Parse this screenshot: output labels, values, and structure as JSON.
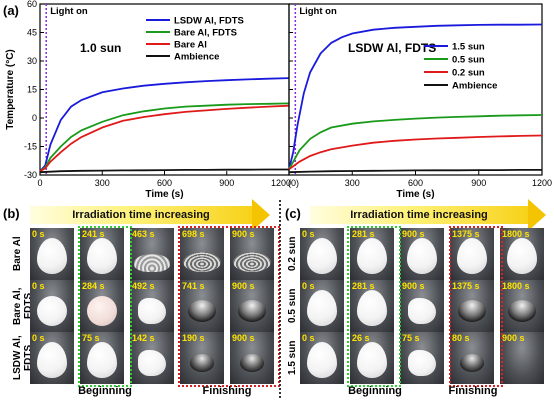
{
  "panel_labels": {
    "a": "(a)",
    "b": "(b)",
    "c": "(c)"
  },
  "chart_data": [
    {
      "type": "line",
      "panel": "left",
      "title": "1.0 sun",
      "annotation": "Light on",
      "xlabel": "Time (s)",
      "ylabel": "Temperature (°C)",
      "xlim": [
        0,
        1200
      ],
      "ylim": [
        -30,
        60
      ],
      "xticks": [
        "0",
        "300",
        "600",
        "900",
        "1200"
      ],
      "yticks": [
        "-30",
        "-15",
        "0",
        "15",
        "30",
        "45",
        "60"
      ],
      "legend_position": "top-right",
      "series": [
        {
          "name": "LSDW Al, FDTS",
          "color": "#1a1adc",
          "x": [
            0,
            25,
            50,
            100,
            150,
            200,
            300,
            400,
            500,
            600,
            700,
            800,
            900,
            1000,
            1100,
            1200
          ],
          "y": [
            -28,
            -25,
            -14,
            -1,
            6,
            9.5,
            13.5,
            15.5,
            17,
            18,
            18.8,
            19.4,
            19.9,
            20.3,
            20.7,
            21
          ]
        },
        {
          "name": "Bare Al, FDTS",
          "color": "#1a9a1a",
          "x": [
            0,
            25,
            50,
            100,
            150,
            200,
            300,
            400,
            500,
            600,
            700,
            800,
            900,
            1000,
            1100,
            1200
          ],
          "y": [
            -28,
            -26,
            -21,
            -15,
            -10,
            -6.5,
            -2,
            1.5,
            3.5,
            5,
            6,
            6.5,
            7,
            7.3,
            7.5,
            7.7
          ]
        },
        {
          "name": "Bare Al",
          "color": "#e01a1a",
          "x": [
            0,
            25,
            50,
            100,
            150,
            200,
            300,
            400,
            500,
            600,
            700,
            800,
            900,
            1000,
            1100,
            1200
          ],
          "y": [
            -28,
            -26.5,
            -23,
            -18,
            -13.5,
            -10,
            -5,
            -1.5,
            0.5,
            2,
            3.2,
            4,
            4.8,
            5.4,
            6,
            6.5
          ]
        },
        {
          "name": "Ambience",
          "color": "#111111",
          "x": [
            0,
            100,
            200,
            300,
            400,
            500,
            600,
            700,
            800,
            900,
            1000,
            1100,
            1200
          ],
          "y": [
            -28.5,
            -28,
            -27.8,
            -27.7,
            -27.6,
            -27.5,
            -27.4,
            -27.3,
            -27.3,
            -27.2,
            -27.2,
            -27.1,
            -27.1
          ]
        }
      ]
    },
    {
      "type": "line",
      "panel": "right",
      "title": "LSDW Al, FDTS",
      "annotation": "Light on",
      "xlabel": "Time (s)",
      "ylabel": "",
      "xlim": [
        0,
        1200
      ],
      "ylim": [
        -30,
        60
      ],
      "xticks": [
        "(0)",
        "300",
        "600",
        "900",
        "1200"
      ],
      "legend_position": "top-right",
      "series": [
        {
          "name": "1.5 sun",
          "color": "#1a1adc",
          "x": [
            0,
            20,
            40,
            70,
            100,
            150,
            200,
            250,
            300,
            400,
            500,
            600,
            700,
            800,
            900,
            1000,
            1100,
            1200
          ],
          "y": [
            -27,
            -18,
            -4,
            13,
            24,
            34,
            39.5,
            42.5,
            44.5,
            46.5,
            47.5,
            48,
            48.5,
            48.8,
            49,
            49.1,
            49.1,
            49.2
          ]
        },
        {
          "name": "0.5 sun",
          "color": "#1a9a1a",
          "x": [
            0,
            25,
            50,
            100,
            150,
            200,
            300,
            400,
            500,
            600,
            700,
            800,
            900,
            1000,
            1100,
            1200
          ],
          "y": [
            -27,
            -22,
            -17,
            -11,
            -7.5,
            -5,
            -3,
            -1.8,
            -1,
            -0.3,
            0.2,
            0.6,
            0.9,
            1.2,
            1.4,
            1.6
          ]
        },
        {
          "name": "0.2 sun",
          "color": "#e01a1a",
          "x": [
            0,
            25,
            50,
            100,
            150,
            200,
            300,
            400,
            500,
            600,
            700,
            800,
            900,
            1000,
            1100,
            1200
          ],
          "y": [
            -27,
            -25,
            -23,
            -20,
            -18,
            -16.5,
            -14.5,
            -13,
            -12,
            -11.3,
            -10.8,
            -10.4,
            -10,
            -9.7,
            -9.4,
            -9.2
          ]
        },
        {
          "name": "Ambience",
          "color": "#111111",
          "x": [
            0,
            100,
            200,
            300,
            400,
            500,
            600,
            700,
            800,
            900,
            1000,
            1100,
            1200
          ],
          "y": [
            -28.5,
            -28.2,
            -28,
            -27.9,
            -27.8,
            -27.7,
            -27.6,
            -27.5,
            -27.5,
            -27.4,
            -27.4,
            -27.3,
            -27.3
          ]
        }
      ]
    }
  ],
  "panel_b": {
    "banner": "Irradiation time increasing",
    "rows": [
      {
        "label": "Bare Al",
        "frames": [
          {
            "time": "0 s",
            "shape": "tear"
          },
          {
            "time": "241 s",
            "shape": "tear"
          },
          {
            "time": "463 s",
            "shape": "flat"
          },
          {
            "time": "698 s",
            "shape": "rim"
          },
          {
            "time": "900 s",
            "shape": "rim"
          }
        ]
      },
      {
        "label": "Bare Al, FDTS",
        "frames": [
          {
            "time": "0 s",
            "shape": "round"
          },
          {
            "time": "284 s",
            "shape": "round-pink"
          },
          {
            "time": "492 s",
            "shape": "irreg"
          },
          {
            "time": "741 s",
            "shape": "ball"
          },
          {
            "time": "900 s",
            "shape": "ball"
          }
        ]
      },
      {
        "label": "LSDW Al, FDTS",
        "frames": [
          {
            "time": "0 s",
            "shape": "tear"
          },
          {
            "time": "75 s",
            "shape": "tear"
          },
          {
            "time": "142 s",
            "shape": "irreg"
          },
          {
            "time": "190 s",
            "shape": "small"
          },
          {
            "time": "900 s",
            "shape": "small"
          }
        ]
      }
    ],
    "beginning_label": "Beginning",
    "finishing_label": "Finishing"
  },
  "panel_c": {
    "banner": "Irradiation time increasing",
    "rows": [
      {
        "label": "0.2 sun",
        "frames": [
          {
            "time": "0 s",
            "shape": "tear"
          },
          {
            "time": "281 s",
            "shape": "tear"
          },
          {
            "time": "900 s",
            "shape": "tear"
          },
          {
            "time": "1375 s",
            "shape": "tear"
          },
          {
            "time": "1800 s",
            "shape": "tear"
          }
        ]
      },
      {
        "label": "0.5 sun",
        "frames": [
          {
            "time": "0 s",
            "shape": "tear"
          },
          {
            "time": "281 s",
            "shape": "tear"
          },
          {
            "time": "900 s",
            "shape": "irreg"
          },
          {
            "time": "1375 s",
            "shape": "ball"
          },
          {
            "time": "1800 s",
            "shape": "ball"
          }
        ]
      },
      {
        "label": "1.5 sun",
        "frames": [
          {
            "time": "0 s",
            "shape": "tear"
          },
          {
            "time": "26 s",
            "shape": "tear"
          },
          {
            "time": "75 s",
            "shape": "irreg"
          },
          {
            "time": "80 s",
            "shape": "small"
          },
          {
            "time": "900 s",
            "shape": "none"
          }
        ]
      }
    ],
    "beginning_label": "Beginning",
    "finishing_label": "Finishing"
  },
  "colors": {
    "beginning_box": "#33cc33",
    "finishing_box": "#e02020",
    "time_label": "#ffe400",
    "light_on_line": "#8a2be2"
  }
}
